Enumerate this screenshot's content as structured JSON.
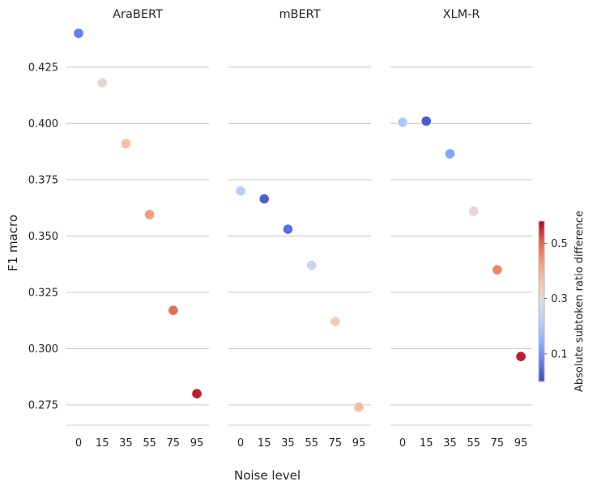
{
  "chart_data": {
    "type": "scatter",
    "xlabel": "Noise level",
    "ylabel": "F1 macro",
    "categories": [
      "0",
      "15",
      "35",
      "55",
      "75",
      "95"
    ],
    "ylim": [
      0.266,
      0.444
    ],
    "yticks": [
      "0.275",
      "0.300",
      "0.325",
      "0.350",
      "0.375",
      "0.400",
      "0.425"
    ],
    "grid": "horizontal",
    "panels": [
      {
        "title": "AraBERT",
        "values": [
          0.44,
          0.418,
          0.391,
          0.3595,
          0.317,
          0.28
        ],
        "color_values": [
          0.07,
          0.3,
          0.37,
          0.43,
          0.49,
          0.56
        ]
      },
      {
        "title": "mBERT",
        "values": [
          0.37,
          0.3665,
          0.353,
          0.337,
          0.312,
          0.274
        ],
        "color_values": [
          0.22,
          0.03,
          0.05,
          0.25,
          0.34,
          0.38
        ]
      },
      {
        "title": "XLM-R",
        "values": [
          0.4005,
          0.401,
          0.3865,
          0.361,
          0.335,
          0.2965
        ],
        "color_values": [
          0.2,
          0.02,
          0.13,
          0.31,
          0.46,
          0.56
        ]
      }
    ],
    "colorbar": {
      "label": "Absolute subtoken ratio difference",
      "ticks": [
        "0.1",
        "0.3",
        "0.5"
      ],
      "range": [
        0.0,
        0.58
      ],
      "colormap": "coolwarm"
    }
  }
}
